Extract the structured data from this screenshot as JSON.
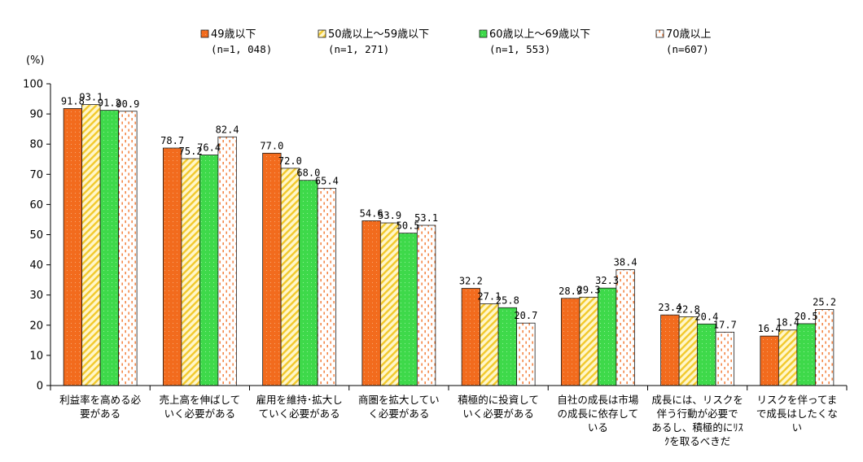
{
  "chart_data": {
    "type": "bar",
    "ylabel": "(%)",
    "ylim": [
      0,
      100
    ],
    "yticks": [
      0,
      10,
      20,
      30,
      40,
      50,
      60,
      70,
      80,
      90,
      100
    ],
    "grid": false,
    "legend_position": "top",
    "categories": [
      [
        "利益率を高める必",
        "要がある"
      ],
      [
        "売上高を伸ばして",
        "いく必要がある"
      ],
      [
        "雇用を維持･拡大し",
        "ていく必要がある"
      ],
      [
        "商圏を拡大してい",
        "く必要がある"
      ],
      [
        "積極的に投資して",
        "いく必要がある"
      ],
      [
        "自社の成長は市場",
        "の成長に依存して",
        "いる"
      ],
      [
        "成長には、リスクを",
        "伴う行動が必要で",
        "あるし、積極的にﾘｽ",
        "ｸを取るべきだ"
      ],
      [
        "リスクを伴ってま",
        "で成長はしたくな",
        "い"
      ]
    ],
    "series": [
      {
        "name": "49歳以下",
        "n": "(n=1, 048)",
        "color": "#f26b1d",
        "pattern": "solid",
        "values": [
          91.8,
          78.7,
          77.0,
          54.6,
          32.2,
          28.9,
          23.4,
          16.4
        ],
        "labels": [
          "91.8",
          "78.7",
          "77.0",
          "54.6",
          "32.2",
          "28.9",
          "23.4",
          "16.4"
        ]
      },
      {
        "name": "50歳以上～59歳以下",
        "n": "(n=1, 271)",
        "color": "#f5d23a",
        "pattern": "diagonal",
        "values": [
          93.1,
          75.2,
          72.0,
          53.9,
          27.1,
          29.3,
          22.8,
          18.4
        ],
        "labels": [
          "93.1",
          "75.2",
          "72.0",
          "53.9",
          "27.1",
          "29.3",
          "22.8",
          "18.4"
        ]
      },
      {
        "name": "60歳以上～69歳以下",
        "n": "(n=1, 553)",
        "color": "#3ed94a",
        "pattern": "solid",
        "values": [
          91.2,
          76.4,
          68.0,
          50.5,
          25.8,
          32.3,
          20.4,
          20.5
        ],
        "labels": [
          "91.2",
          "76.4",
          "68.0",
          "50.5",
          "25.8",
          "32.3",
          "20.4",
          "20.5"
        ]
      },
      {
        "name": "70歳以上",
        "n": "(n=607)",
        "color": "#f26b1d",
        "pattern": "dashed",
        "values": [
          90.9,
          82.4,
          65.4,
          53.1,
          20.7,
          38.4,
          17.7,
          25.2
        ],
        "labels": [
          "90.9",
          "82.4",
          "65.4",
          "53.1",
          "20.7",
          "38.4",
          "17.7",
          "25.2"
        ]
      }
    ]
  }
}
